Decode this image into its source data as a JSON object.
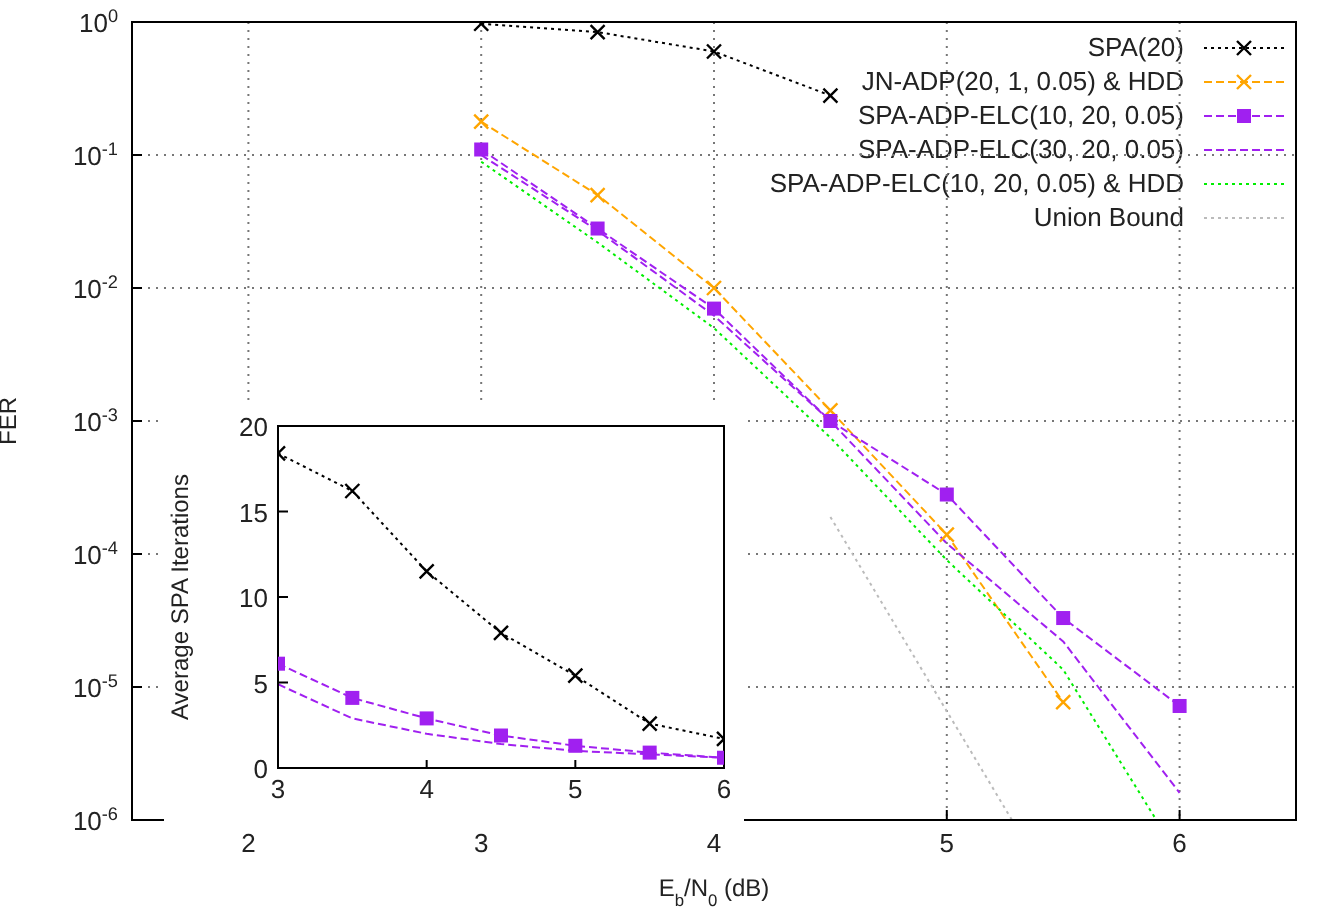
{
  "chart_data": [
    {
      "type": "line",
      "xlabel": "E$_{b}$/N$_{0}$ (dB)",
      "ylabel": "FER",
      "log": "y",
      "grid": true,
      "legend": "top right",
      "xlim": [
        1.5,
        6.5
      ],
      "xticks": [
        2,
        3,
        4,
        5,
        6
      ],
      "ylim": [
        1e-06,
        1
      ],
      "yticks": [
        {
          "value": 1e-06,
          "label": "10$^{-6}$"
        },
        {
          "value": 1e-05,
          "label": "10$^{-5}$"
        },
        {
          "value": 0.0001,
          "label": "10$^{-4}$"
        },
        {
          "value": 0.001,
          "label": "10$^{-3}$"
        },
        {
          "value": 0.01,
          "label": "10$^{-2}$"
        },
        {
          "value": 0.1,
          "label": "10$^{-1}$"
        },
        {
          "value": 1,
          "label": "10$^{0}$"
        }
      ],
      "series": [
        {
          "name": "SPA(20)",
          "color": "#000000",
          "line_style": "dotted",
          "marker": "cross",
          "x": [
            3,
            3.5,
            4,
            4.5
          ],
          "values": [
            0.97,
            0.84,
            0.6,
            0.28
          ]
        },
        {
          "name": "JN-ADP(20, 1, 0.05) & HDD",
          "color": "#ffa500",
          "line_style": "dashed",
          "marker": "cross",
          "x": [
            3,
            3.5,
            4,
            4.5,
            5,
            5.5
          ],
          "values": [
            0.178,
            0.05,
            0.01,
            0.0012,
            0.00014,
            7.7e-06
          ]
        },
        {
          "name": "SPA-ADP-ELC(10, 20, 0.05)",
          "color": "#a020f0",
          "line_style": "dashed",
          "marker": "square",
          "x": [
            3,
            3.5,
            4,
            4.5,
            5,
            5.5,
            6
          ],
          "values": [
            0.11,
            0.028,
            0.007,
            0.001,
            0.00028,
            3.3e-05,
            7.2e-06
          ]
        },
        {
          "name": "SPA-ADP-ELC(30, 20, 0.05)",
          "color": "#a020f0",
          "line_style": "dashed",
          "marker": "none",
          "x": [
            3,
            3.5,
            4,
            4.5,
            5,
            5.5,
            6
          ],
          "values": [
            0.1,
            0.027,
            0.0062,
            0.001,
            0.00012,
            2.2e-05,
            1.6e-06
          ]
        },
        {
          "name": "SPA-ADP-ELC(10, 20, 0.05) & HDD",
          "color": "#00ee00",
          "line_style": "dotted",
          "marker": "none",
          "x": [
            3,
            3.5,
            4,
            4.5,
            5,
            5.5,
            5.9
          ],
          "values": [
            0.089,
            0.022,
            0.005,
            0.00075,
            9e-05,
            1.35e-05,
            1e-06
          ]
        },
        {
          "name": "Union Bound",
          "color": "#bbbbbb",
          "line_style": "dotted",
          "marker": "none",
          "x": [
            4.5,
            5.28
          ],
          "values": [
            0.00019,
            1e-06
          ]
        }
      ]
    },
    {
      "type": "line",
      "ylabel": "Average SPA Iterations",
      "xlim": [
        3,
        6
      ],
      "xticks": [
        3,
        4,
        5,
        6
      ],
      "ylim": [
        0,
        20
      ],
      "yticks": [
        0,
        5,
        10,
        15,
        20
      ],
      "series": [
        {
          "color": "#000000",
          "line_style": "dotted",
          "marker": "cross",
          "x": [
            3,
            3.5,
            4,
            4.5,
            5,
            5.5,
            6
          ],
          "values": [
            18.4,
            16.2,
            11.5,
            7.9,
            5.4,
            2.6,
            1.7
          ]
        },
        {
          "color": "#a020f0",
          "line_style": "dashed",
          "marker": "square",
          "x": [
            3,
            3.5,
            4,
            4.5,
            5,
            5.5,
            6
          ],
          "values": [
            6.1,
            4.1,
            2.9,
            1.9,
            1.3,
            0.9,
            0.6
          ]
        },
        {
          "color": "#a020f0",
          "line_style": "dashed",
          "marker": "none",
          "x": [
            3,
            3.5,
            4,
            4.5,
            5,
            5.5,
            6
          ],
          "values": [
            4.9,
            2.9,
            2.0,
            1.4,
            1.0,
            0.8,
            0.6
          ]
        }
      ]
    }
  ]
}
